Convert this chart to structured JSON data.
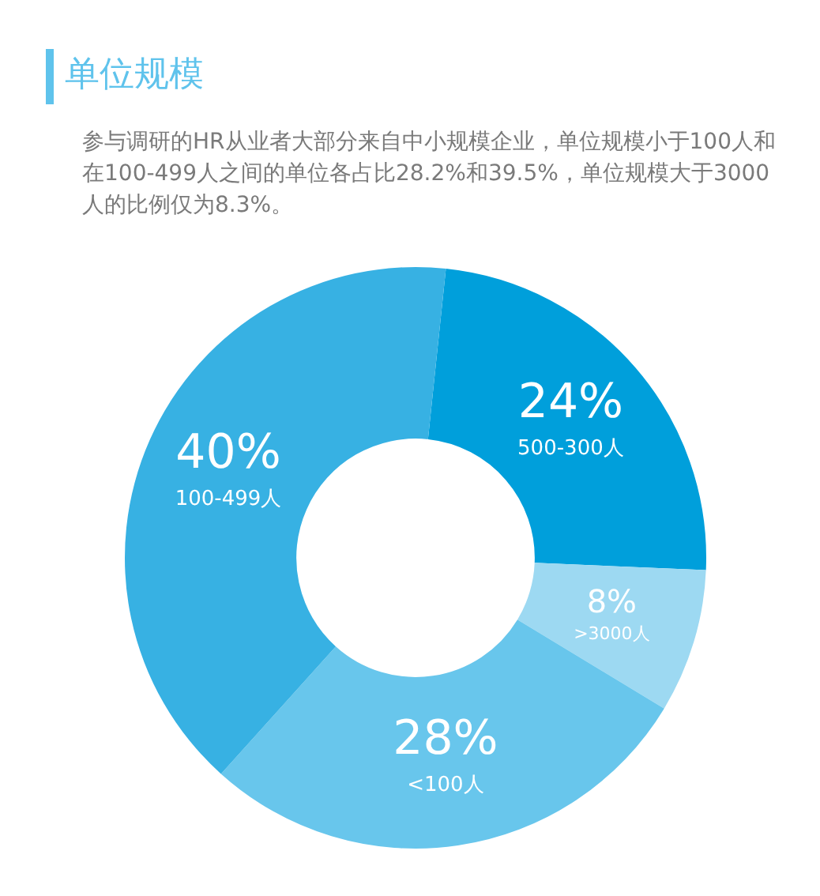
{
  "chart_data": {
    "type": "donut",
    "title": "单位规模",
    "subtitle": "参与调研的HR从业者大部分来自中小规模企业，单位规模小于100人和在100-499人之间的单位各占比28.2%和39.5%，单位规模大于3000人的比例仅为8.3%。",
    "categories": [
      "500-300人",
      ">3000人",
      "<100人",
      "100-499人"
    ],
    "values": [
      24,
      8,
      28,
      40
    ],
    "value_labels": [
      "24%",
      "8%",
      "28%",
      "40%"
    ],
    "colors": [
      "#009fdb",
      "#9dd9f2",
      "#68c6ec",
      "#37b1e3"
    ],
    "legend": false
  }
}
